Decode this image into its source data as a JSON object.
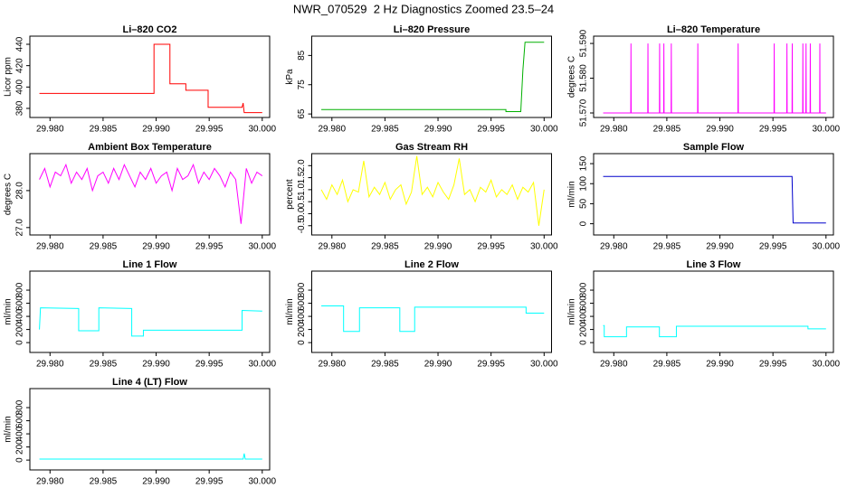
{
  "title": "NWR_070529  2 Hz Diagnostics Zoomed 23.5–24",
  "chart_data": [
    {
      "type": "line",
      "title": "Li–820 CO2",
      "ylabel": "Licor ppm",
      "color": "#ff0000",
      "xlim": [
        29.9781,
        30.0007
      ],
      "xticks": [
        {
          "value": 29.98,
          "label": "29.980"
        },
        {
          "value": 29.985,
          "label": "29.985"
        },
        {
          "value": 29.99,
          "label": "29.990"
        },
        {
          "value": 29.995,
          "label": "29.995"
        },
        {
          "value": 30.0,
          "label": "30.000"
        }
      ],
      "ylim": [
        371.5,
        447.6
      ],
      "yticks": [
        380,
        400,
        420,
        440
      ],
      "x": [
        29.979,
        29.9898,
        29.9898,
        29.9913,
        29.9913,
        29.9928,
        29.9928,
        29.9949,
        29.9949,
        29.9981,
        29.9982,
        29.9983,
        30.0
      ],
      "values": [
        394,
        394,
        440,
        440,
        403,
        403,
        397,
        397,
        381,
        381,
        385,
        376,
        376
      ]
    },
    {
      "type": "line",
      "title": "Li–820 Pressure",
      "ylabel": "kPa",
      "color": "#00b000",
      "xlim": [
        29.9781,
        30.0007
      ],
      "xticks": [
        {
          "value": 29.98,
          "label": "29.980"
        },
        {
          "value": 29.985,
          "label": "29.985"
        },
        {
          "value": 29.99,
          "label": "29.990"
        },
        {
          "value": 29.995,
          "label": "29.995"
        },
        {
          "value": 30.0,
          "label": "30.000"
        }
      ],
      "ylim": [
        63.8,
        91.6
      ],
      "yticks": [
        65,
        75,
        85
      ],
      "x": [
        29.979,
        29.9964,
        29.9964,
        29.9978,
        29.998,
        29.9982,
        30.0
      ],
      "values": [
        66.5,
        66.5,
        65.8,
        65.8,
        80,
        89.5,
        89.5
      ]
    },
    {
      "type": "line",
      "title": "Li–820 Temperature",
      "ylabel": "degrees C",
      "color": "#ff00ff",
      "xlim": [
        29.9781,
        30.0007
      ],
      "xticks": [
        {
          "value": 29.98,
          "label": "29.980"
        },
        {
          "value": 29.985,
          "label": "29.985"
        },
        {
          "value": 29.99,
          "label": "29.990"
        },
        {
          "value": 29.995,
          "label": "29.995"
        },
        {
          "value": 30.0,
          "label": "30.000"
        }
      ],
      "ylim": [
        51.5687,
        51.5921
      ],
      "yticks": [
        {
          "value": 51.57,
          "label": "51.570"
        },
        {
          "value": 51.58,
          "label": "51.580"
        },
        {
          "value": 51.59,
          "label": "51.590"
        }
      ],
      "x": [
        29.979,
        29.9816,
        29.98162,
        29.98164,
        29.9832,
        29.98322,
        29.98324,
        29.9843,
        29.98432,
        29.98434,
        29.9847,
        29.98472,
        29.98474,
        29.9854,
        29.98542,
        29.98544,
        29.9879,
        29.98792,
        29.98794,
        29.9917,
        29.99172,
        29.99174,
        29.9951,
        29.99512,
        29.99514,
        29.9963,
        29.99632,
        29.99634,
        29.9968,
        29.99682,
        29.99684,
        29.9978,
        29.99782,
        29.99784,
        29.9981,
        29.99812,
        29.99814,
        29.9985,
        29.99852,
        29.99854,
        29.9994,
        29.99942,
        29.99944,
        30.0
      ],
      "values": [
        51.57,
        51.57,
        51.59,
        51.57,
        51.57,
        51.59,
        51.57,
        51.57,
        51.59,
        51.57,
        51.57,
        51.59,
        51.57,
        51.57,
        51.59,
        51.57,
        51.57,
        51.59,
        51.57,
        51.57,
        51.59,
        51.57,
        51.57,
        51.59,
        51.57,
        51.57,
        51.59,
        51.57,
        51.57,
        51.59,
        51.57,
        51.57,
        51.59,
        51.57,
        51.57,
        51.59,
        51.57,
        51.57,
        51.59,
        51.57,
        51.57,
        51.59,
        51.57,
        51.57
      ]
    },
    {
      "type": "line",
      "title": "Ambient Box Temperature",
      "ylabel": "degrees C",
      "color": "#ff00ff",
      "xlim": [
        29.9781,
        30.0007
      ],
      "xticks": [
        {
          "value": 29.98,
          "label": "29.980"
        },
        {
          "value": 29.985,
          "label": "29.985"
        },
        {
          "value": 29.99,
          "label": "29.990"
        },
        {
          "value": 29.995,
          "label": "29.995"
        },
        {
          "value": 30.0,
          "label": "30.000"
        }
      ],
      "ylim": [
        26.8,
        29.0
      ],
      "yticks": [
        {
          "value": 27.0,
          "label": "27.0"
        },
        {
          "value": 28.0,
          "label": "28.0"
        }
      ],
      "x": [
        29.979,
        29.9795,
        29.98,
        29.9805,
        29.981,
        29.9815,
        29.982,
        29.9825,
        29.983,
        29.9835,
        29.984,
        29.9845,
        29.985,
        29.9855,
        29.986,
        29.9865,
        29.987,
        29.9875,
        29.988,
        29.9885,
        29.989,
        29.9895,
        29.99,
        29.9905,
        29.991,
        29.9915,
        29.992,
        29.9925,
        29.993,
        29.9935,
        29.994,
        29.9945,
        29.995,
        29.9955,
        29.996,
        29.9965,
        29.997,
        29.9975,
        29.998,
        29.9985,
        29.999,
        29.9995,
        30.0
      ],
      "values": [
        28.3,
        28.6,
        28.1,
        28.5,
        28.4,
        28.7,
        28.2,
        28.5,
        28.3,
        28.6,
        28.0,
        28.4,
        28.5,
        28.2,
        28.6,
        28.3,
        28.7,
        28.4,
        28.1,
        28.5,
        28.3,
        28.6,
        28.2,
        28.4,
        28.5,
        28.0,
        28.6,
        28.3,
        28.4,
        28.7,
        28.2,
        28.5,
        28.3,
        28.6,
        28.4,
        28.1,
        28.5,
        28.3,
        27.1,
        28.6,
        28.2,
        28.5,
        28.4
      ]
    },
    {
      "type": "line",
      "title": "Gas Stream RH",
      "ylabel": "percent",
      "color": "#ffff00",
      "xlim": [
        29.9781,
        30.0007
      ],
      "xticks": [
        {
          "value": 29.98,
          "label": "29.980"
        },
        {
          "value": 29.985,
          "label": "29.985"
        },
        {
          "value": 29.99,
          "label": "29.990"
        },
        {
          "value": 29.995,
          "label": "29.995"
        },
        {
          "value": 30.0,
          "label": "30.000"
        }
      ],
      "ylim": [
        -0.885,
        2.5
      ],
      "yticks": [
        -0.5,
        {
          "value": 0.0,
          "label": "0.0"
        },
        0.5,
        {
          "value": 1.0,
          "label": "1.0"
        },
        1.5,
        {
          "value": 2.0,
          "label": "2.0"
        }
      ],
      "x": [
        29.979,
        29.9795,
        29.98,
        29.9805,
        29.981,
        29.9815,
        29.982,
        29.9825,
        29.983,
        29.9835,
        29.984,
        29.9845,
        29.985,
        29.9855,
        29.986,
        29.9865,
        29.987,
        29.9875,
        29.988,
        29.9885,
        29.989,
        29.9895,
        29.99,
        29.9905,
        29.991,
        29.9915,
        29.992,
        29.9925,
        29.993,
        29.9935,
        29.994,
        29.9945,
        29.995,
        29.9955,
        29.996,
        29.9965,
        29.997,
        29.9975,
        29.998,
        29.9985,
        29.999,
        29.9995,
        30.0
      ],
      "values": [
        1.0,
        0.6,
        1.2,
        0.8,
        1.4,
        0.5,
        1.0,
        0.9,
        2.2,
        0.7,
        1.1,
        0.8,
        1.3,
        0.6,
        1.0,
        1.2,
        0.4,
        0.9,
        2.4,
        0.8,
        1.1,
        0.7,
        1.3,
        0.9,
        0.6,
        1.2,
        2.3,
        0.8,
        1.0,
        0.5,
        1.1,
        0.9,
        1.4,
        0.7,
        1.0,
        0.8,
        1.2,
        0.6,
        1.1,
        0.9,
        1.3,
        -0.5,
        1.0
      ]
    },
    {
      "type": "line",
      "title": "Sample Flow",
      "ylabel": "ml/min",
      "color": "#0000cc",
      "xlim": [
        29.9781,
        30.0007
      ],
      "xticks": [
        {
          "value": 29.98,
          "label": "29.980"
        },
        {
          "value": 29.985,
          "label": "29.985"
        },
        {
          "value": 29.99,
          "label": "29.990"
        },
        {
          "value": 29.995,
          "label": "29.995"
        },
        {
          "value": 30.0,
          "label": "30.000"
        }
      ],
      "ylim": [
        -28,
        175
      ],
      "yticks": [
        0,
        50,
        100,
        150
      ],
      "x": [
        29.979,
        29.9968,
        29.9969,
        30.0
      ],
      "values": [
        118,
        118,
        2,
        2
      ]
    },
    {
      "type": "line",
      "title": "Line 1 Flow",
      "ylabel": "ml/min",
      "color": "#00ffff",
      "xlim": [
        29.9781,
        30.0007
      ],
      "xticks": [
        {
          "value": 29.98,
          "label": "29.980"
        },
        {
          "value": 29.985,
          "label": "29.985"
        },
        {
          "value": 29.99,
          "label": "29.990"
        },
        {
          "value": 29.995,
          "label": "29.995"
        },
        {
          "value": 30.0,
          "label": "30.000"
        }
      ],
      "ylim": [
        -150,
        1090
      ],
      "yticks": [
        0,
        200,
        400,
        600,
        800
      ],
      "x": [
        29.979,
        29.9791,
        29.9827,
        29.9827,
        29.9846,
        29.9846,
        29.9877,
        29.9877,
        29.9888,
        29.9888,
        29.9981,
        29.9981,
        30.0
      ],
      "values": [
        200,
        530,
        520,
        180,
        180,
        530,
        520,
        100,
        100,
        190,
        190,
        490,
        480
      ]
    },
    {
      "type": "line",
      "title": "Line 2 Flow",
      "ylabel": "ml/min",
      "color": "#00ffff",
      "xlim": [
        29.9781,
        30.0007
      ],
      "xticks": [
        {
          "value": 29.98,
          "label": "29.980"
        },
        {
          "value": 29.985,
          "label": "29.985"
        },
        {
          "value": 29.99,
          "label": "29.990"
        },
        {
          "value": 29.995,
          "label": "29.995"
        },
        {
          "value": 30.0,
          "label": "30.000"
        }
      ],
      "ylim": [
        -150,
        1090
      ],
      "yticks": [
        0,
        200,
        400,
        600,
        800
      ],
      "x": [
        29.979,
        29.9811,
        29.9811,
        29.9826,
        29.9826,
        29.9864,
        29.9864,
        29.9878,
        29.9878,
        29.9983,
        29.9983,
        30.0
      ],
      "values": [
        560,
        560,
        170,
        170,
        530,
        530,
        170,
        170,
        540,
        540,
        450,
        450
      ]
    },
    {
      "type": "line",
      "title": "Line 3 Flow",
      "ylabel": "ml/min",
      "color": "#00ffff",
      "xlim": [
        29.9781,
        30.0007
      ],
      "xticks": [
        {
          "value": 29.98,
          "label": "29.980"
        },
        {
          "value": 29.985,
          "label": "29.985"
        },
        {
          "value": 29.99,
          "label": "29.990"
        },
        {
          "value": 29.995,
          "label": "29.995"
        },
        {
          "value": 30.0,
          "label": "30.000"
        }
      ],
      "ylim": [
        -150,
        1090
      ],
      "yticks": [
        0,
        200,
        400,
        600,
        800
      ],
      "x": [
        29.979,
        29.9791,
        29.9791,
        29.9812,
        29.9812,
        29.9843,
        29.9843,
        29.9859,
        29.9859,
        29.9983,
        29.9983,
        30.0
      ],
      "values": [
        260,
        260,
        90,
        90,
        240,
        240,
        90,
        90,
        250,
        250,
        210,
        210
      ]
    },
    {
      "type": "line",
      "title": "Line 4 (LT) Flow",
      "ylabel": "ml/min",
      "color": "#00ffff",
      "xlim": [
        29.9781,
        30.0007
      ],
      "xticks": [
        {
          "value": 29.98,
          "label": "29.980"
        },
        {
          "value": 29.985,
          "label": "29.985"
        },
        {
          "value": 29.99,
          "label": "29.990"
        },
        {
          "value": 29.995,
          "label": "29.995"
        },
        {
          "value": 30.0,
          "label": "30.000"
        }
      ],
      "ylim": [
        -150,
        1090
      ],
      "yticks": [
        0,
        200,
        400,
        600,
        800
      ],
      "x": [
        29.979,
        29.9982,
        29.9983,
        29.9984,
        30.0
      ],
      "values": [
        15,
        15,
        100,
        15,
        15
      ]
    }
  ]
}
